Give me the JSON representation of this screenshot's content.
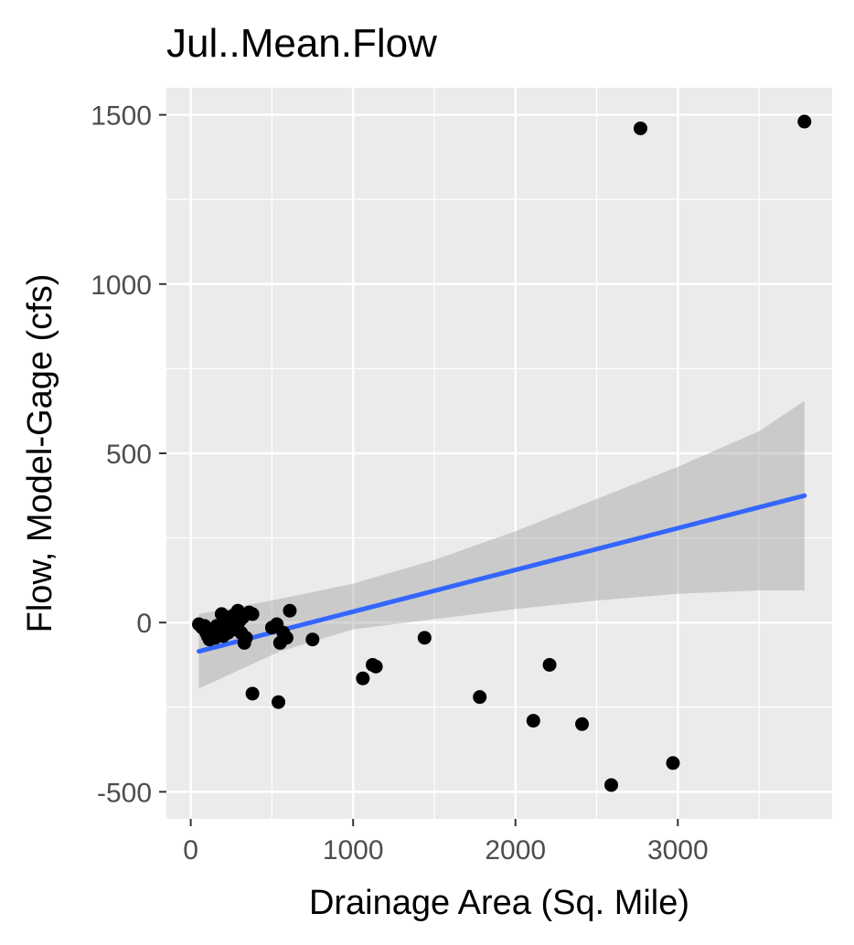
{
  "chart_data": {
    "type": "scatter",
    "title": "Jul..Mean.Flow",
    "xlabel": "Drainage Area (Sq. Mile)",
    "ylabel": "Flow, Model-Gage (cfs)",
    "xlim": [
      -150,
      3950
    ],
    "ylim": [
      -580,
      1580
    ],
    "x_ticks": [
      0,
      1000,
      2000,
      3000
    ],
    "x_tick_labels": [
      "0",
      "1000",
      "2000",
      "3000"
    ],
    "y_ticks": [
      -500,
      0,
      500,
      1000,
      1500
    ],
    "y_tick_labels": [
      "-500",
      "0",
      "500",
      "1000",
      "1500"
    ],
    "grid": true,
    "points": [
      {
        "x": 50,
        "y": -5
      },
      {
        "x": 70,
        "y": -15
      },
      {
        "x": 85,
        "y": -10
      },
      {
        "x": 95,
        "y": -30
      },
      {
        "x": 105,
        "y": -40
      },
      {
        "x": 115,
        "y": -50
      },
      {
        "x": 120,
        "y": -20
      },
      {
        "x": 130,
        "y": -35
      },
      {
        "x": 140,
        "y": -25
      },
      {
        "x": 150,
        "y": -45
      },
      {
        "x": 160,
        "y": -10
      },
      {
        "x": 170,
        "y": -30
      },
      {
        "x": 180,
        "y": -20
      },
      {
        "x": 190,
        "y": 25
      },
      {
        "x": 200,
        "y": -40
      },
      {
        "x": 210,
        "y": -15
      },
      {
        "x": 220,
        "y": 5
      },
      {
        "x": 230,
        "y": -30
      },
      {
        "x": 240,
        "y": 15
      },
      {
        "x": 250,
        "y": -10
      },
      {
        "x": 260,
        "y": 20
      },
      {
        "x": 270,
        "y": -20
      },
      {
        "x": 280,
        "y": 10
      },
      {
        "x": 290,
        "y": 35
      },
      {
        "x": 300,
        "y": 5
      },
      {
        "x": 310,
        "y": -30
      },
      {
        "x": 320,
        "y": 15
      },
      {
        "x": 330,
        "y": -60
      },
      {
        "x": 340,
        "y": -45
      },
      {
        "x": 360,
        "y": 30
      },
      {
        "x": 380,
        "y": 25
      },
      {
        "x": 380,
        "y": -210
      },
      {
        "x": 500,
        "y": -15
      },
      {
        "x": 530,
        "y": -5
      },
      {
        "x": 540,
        "y": -235
      },
      {
        "x": 550,
        "y": -60
      },
      {
        "x": 570,
        "y": -30
      },
      {
        "x": 590,
        "y": -45
      },
      {
        "x": 610,
        "y": 35
      },
      {
        "x": 750,
        "y": -50
      },
      {
        "x": 1060,
        "y": -165
      },
      {
        "x": 1120,
        "y": -125
      },
      {
        "x": 1140,
        "y": -130
      },
      {
        "x": 1440,
        "y": -45
      },
      {
        "x": 1780,
        "y": -220
      },
      {
        "x": 2110,
        "y": -290
      },
      {
        "x": 2210,
        "y": -125
      },
      {
        "x": 2410,
        "y": -300
      },
      {
        "x": 2590,
        "y": -480
      },
      {
        "x": 2770,
        "y": 1460
      },
      {
        "x": 2970,
        "y": -415
      },
      {
        "x": 3780,
        "y": 1480
      }
    ],
    "fit_line": {
      "method": "lm",
      "x": [
        50,
        3780
      ],
      "y": [
        -85,
        375
      ],
      "color": "#3366FF"
    },
    "confidence_band": {
      "x": [
        50,
        550,
        1000,
        1500,
        2000,
        2500,
        3000,
        3500,
        3780
      ],
      "upper": [
        25,
        70,
        115,
        185,
        270,
        365,
        460,
        565,
        655
      ],
      "lower": [
        -195,
        -85,
        -20,
        10,
        40,
        65,
        85,
        95,
        95
      ],
      "color": "#999999"
    },
    "colors": {
      "panel_background": "#EBEBEB",
      "grid_major": "#FFFFFF",
      "point": "#000000",
      "tick": "#333333"
    }
  }
}
